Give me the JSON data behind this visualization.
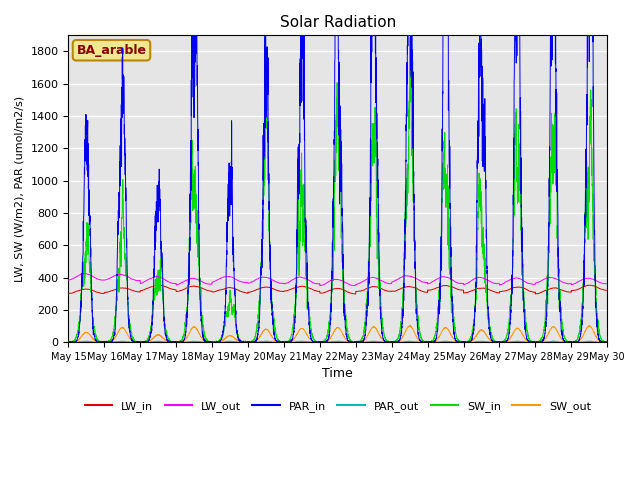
{
  "title": "Solar Radiation",
  "xlabel": "Time",
  "ylabel": "LW, SW (W/m2), PAR (umol/m2/s)",
  "annotation": "BA_arable",
  "ylim": [
    0,
    1900
  ],
  "yticks": [
    0,
    200,
    400,
    600,
    800,
    1000,
    1200,
    1400,
    1600,
    1800
  ],
  "x_tick_labels": [
    "May 15",
    "May 16",
    "May 17",
    "May 18",
    "May 19",
    "May 20",
    "May 21",
    "May 22",
    "May 23",
    "May 24",
    "May 25",
    "May 26",
    "May 27",
    "May 28",
    "May 29",
    "May 30"
  ],
  "colors": {
    "LW_in": "#dd0000",
    "LW_out": "#ff00ff",
    "PAR_in": "#0000ee",
    "PAR_out": "#00bbbb",
    "SW_in": "#00dd00",
    "SW_out": "#ff9900"
  },
  "bg_color": "#e5e5e5",
  "days": 15,
  "pts_per_day": 288
}
